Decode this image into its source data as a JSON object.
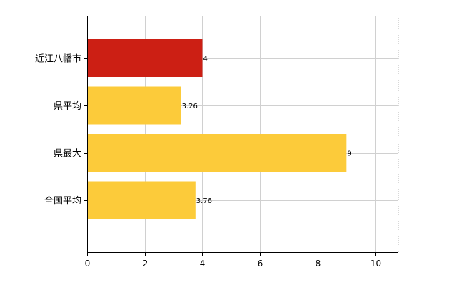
{
  "chart_data": {
    "type": "bar",
    "orientation": "horizontal",
    "categories": [
      "近江八幡市",
      "県平均",
      "県最大",
      "全国平均"
    ],
    "values": [
      4,
      3.26,
      9,
      3.76
    ],
    "data_labels": [
      "4",
      "3.26",
      "9",
      "3.76"
    ],
    "colors": [
      "#cc1f14",
      "#fccb3a",
      "#fccb3a",
      "#fccb3a"
    ],
    "xlim": [
      0,
      10.8
    ],
    "xticks": [
      0,
      2,
      4,
      6,
      8,
      10
    ],
    "xtick_labels": [
      "0",
      "2",
      "4",
      "6",
      "8",
      "10"
    ],
    "title": "",
    "xlabel": "",
    "ylabel": "",
    "grid": true,
    "legend": "none"
  }
}
